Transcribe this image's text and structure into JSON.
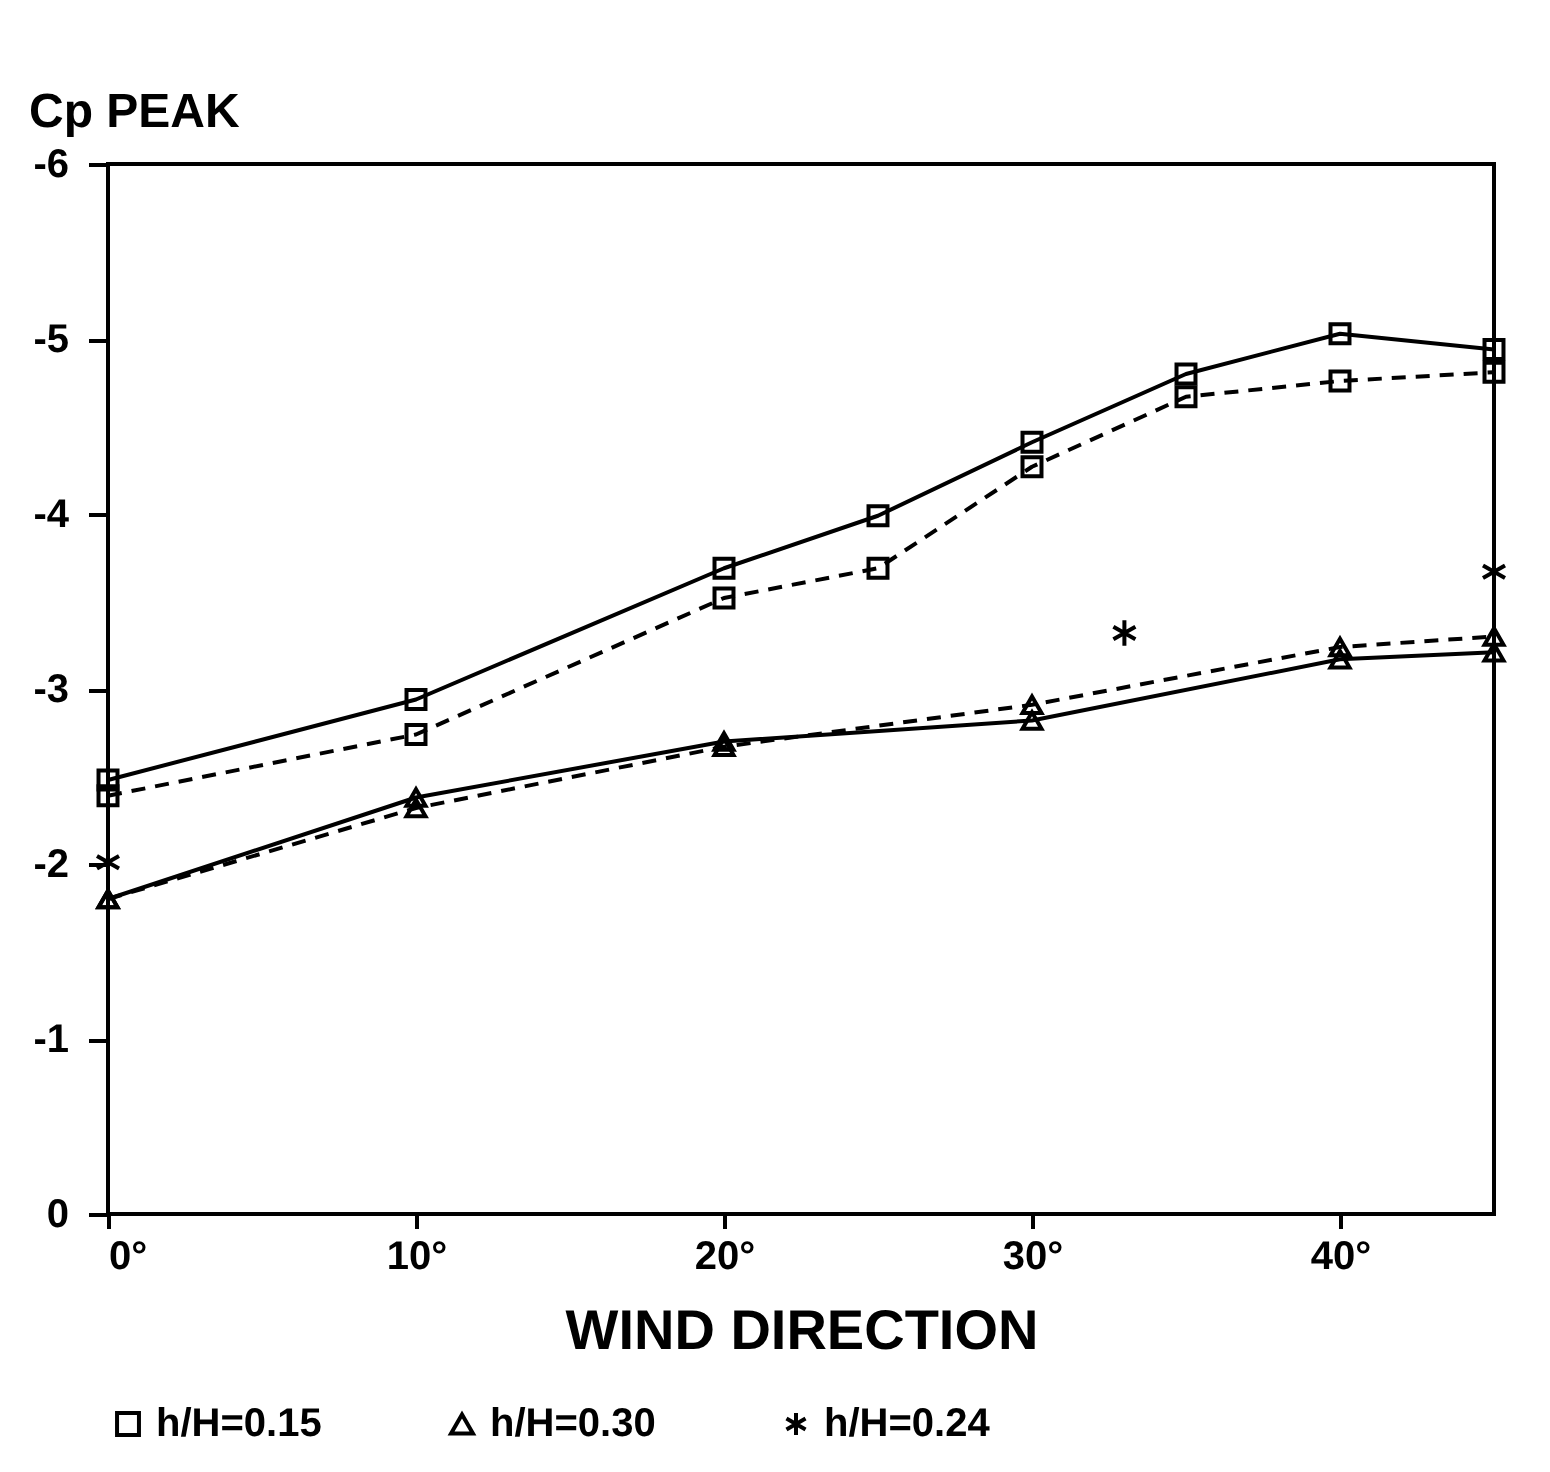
{
  "chart_data": {
    "type": "line",
    "ylabel": "Cp PEAK",
    "xlabel": "WIND DIRECTION",
    "x": [
      0,
      10,
      20,
      25,
      30,
      35,
      40,
      45
    ],
    "xlim": [
      0,
      45
    ],
    "xticks": [
      {
        "value": 0,
        "label": "0°"
      },
      {
        "value": 10,
        "label": "10°"
      },
      {
        "value": 20,
        "label": "20°"
      },
      {
        "value": 30,
        "label": "30°"
      },
      {
        "value": 40,
        "label": "40°"
      }
    ],
    "ylim": [
      0,
      -6
    ],
    "yticks": [
      0,
      -1,
      -2,
      -3,
      -4,
      -5,
      -6
    ],
    "grid": false,
    "legend": "bottom",
    "series": [
      {
        "name": "h/H=0.15",
        "color": "#000000",
        "marker": "square",
        "line_style": "solid",
        "values": [
          -2.48,
          -2.94,
          -3.69,
          -3.99,
          -4.41,
          -4.8,
          -5.03,
          -4.94
        ]
      },
      {
        "color": "#000000",
        "marker": "square",
        "line_style": "dashed",
        "values": [
          -2.39,
          -2.74,
          -3.52,
          -3.69,
          -4.27,
          -4.67,
          -4.76,
          -4.81
        ]
      },
      {
        "name": "h/H=0.30",
        "color": "#000000",
        "marker": "triangle",
        "line_style": "solid",
        "x": [
          0,
          10,
          20,
          30,
          40,
          45
        ],
        "values": [
          -1.8,
          -2.38,
          -2.7,
          -2.82,
          -3.17,
          -3.21
        ]
      },
      {
        "color": "#000000",
        "marker": "triangle",
        "line_style": "dashed",
        "x": [
          0,
          10,
          20,
          30,
          40,
          45
        ],
        "values": [
          -1.8,
          -2.32,
          -2.67,
          -2.91,
          -3.24,
          -3.3
        ]
      },
      {
        "name": "h/H=0.24",
        "type": "scatter",
        "color": "#000000",
        "marker": "cross",
        "x": [
          0,
          33,
          45
        ],
        "values": [
          -2.01,
          -3.32,
          -3.67
        ]
      }
    ]
  }
}
